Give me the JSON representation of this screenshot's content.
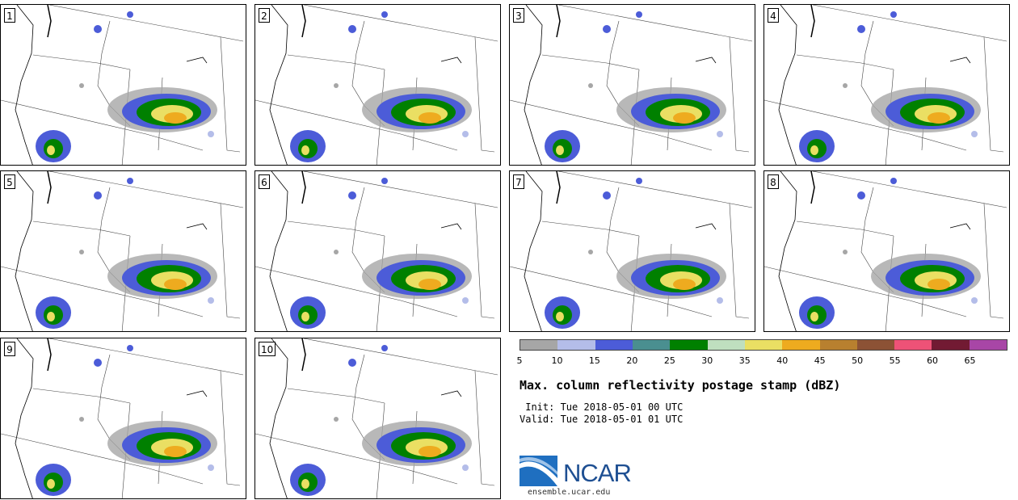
{
  "title": "Max. column reflectivity postage stamp (dBZ)",
  "init_line": " Init: Tue 2018-05-01 00 UTC",
  "valid_line": "Valid: Tue 2018-05-01 01 UTC",
  "logo_text": "NCAR",
  "logo_url": "ensemble.ucar.edu",
  "panels": [
    "1",
    "2",
    "3",
    "4",
    "5",
    "6",
    "7",
    "8",
    "9",
    "10"
  ],
  "colorbar": {
    "colors": [
      "#a6a6a6",
      "#b4bde9",
      "#4c5cd8",
      "#4a8f90",
      "#008000",
      "#bfdfbf",
      "#eadf63",
      "#eeab1f",
      "#b8802f",
      "#8c5235",
      "#ee5277",
      "#721a33",
      "#a846a6"
    ],
    "ticks": [
      "5",
      "10",
      "15",
      "20",
      "25",
      "30",
      "35",
      "40",
      "45",
      "50",
      "55",
      "60",
      "65"
    ]
  }
}
